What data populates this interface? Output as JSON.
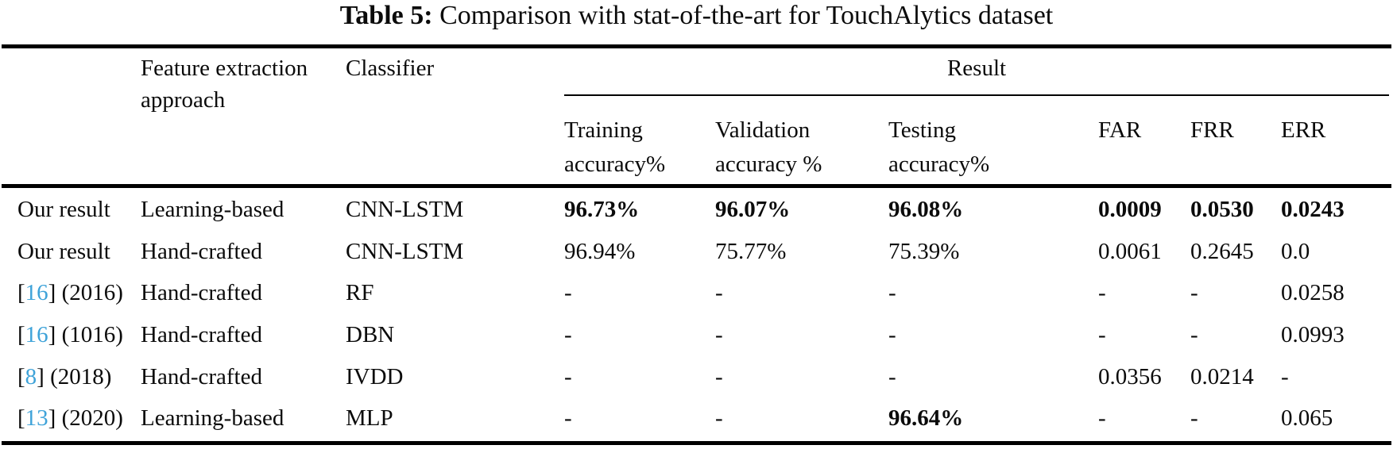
{
  "title": {
    "label": "Table 5:",
    "text": " Comparison with stat-of-the-art for TouchAlytics dataset"
  },
  "header": {
    "feature": "Feature extraction approach",
    "classifier": "Classifier",
    "result_group": "Result",
    "training": "Training accuracy%",
    "validation": "Validation accuracy %",
    "testing": "Testing accuracy%",
    "far": "FAR",
    "frr": "FRR",
    "err": "ERR"
  },
  "rows": [
    {
      "src_open": "",
      "src_cite": "",
      "src_rest": "Our result",
      "feature": "Learning-based",
      "classifier": "CNN-LSTM",
      "training": "96.73%",
      "validation": "96.07%",
      "testing": "96.08%",
      "far": "0.0009",
      "frr": "0.0530",
      "err": "0.0243"
    },
    {
      "src_open": "",
      "src_cite": "",
      "src_rest": "Our result",
      "feature": "Hand-crafted",
      "classifier": "CNN-LSTM",
      "training": "96.94%",
      "validation": "75.77%",
      "testing": "75.39%",
      "far": "0.0061",
      "frr": "0.2645",
      "err": "0.0"
    },
    {
      "src_open": "[",
      "src_cite": "16",
      "src_rest": "] (2016)",
      "feature": "Hand-crafted",
      "classifier": "RF",
      "training": "-",
      "validation": "-",
      "testing": "-",
      "far": "-",
      "frr": "-",
      "err": "0.0258"
    },
    {
      "src_open": "[",
      "src_cite": "16",
      "src_rest": "] (1016)",
      "feature": "Hand-crafted",
      "classifier": "DBN",
      "training": "-",
      "validation": "-",
      "testing": "-",
      "far": "-",
      "frr": "-",
      "err": "0.0993"
    },
    {
      "src_open": "[",
      "src_cite": "8",
      "src_rest": "] (2018)",
      "feature": "Hand-crafted",
      "classifier": "IVDD",
      "training": "-",
      "validation": "-",
      "testing": "-",
      "far": "0.0356",
      "frr": "0.0214",
      "err": "-"
    },
    {
      "src_open": "[",
      "src_cite": "13",
      "src_rest": "] (2020)",
      "feature": "Learning-based",
      "classifier": "MLP",
      "training": "-",
      "validation": "-",
      "testing": "96.64%",
      "far": "-",
      "frr": "-",
      "err": "0.065"
    }
  ],
  "colors": {
    "citation_blue": "#3fa3d9",
    "text": "#0b0b0b",
    "background": "#ffffff"
  }
}
